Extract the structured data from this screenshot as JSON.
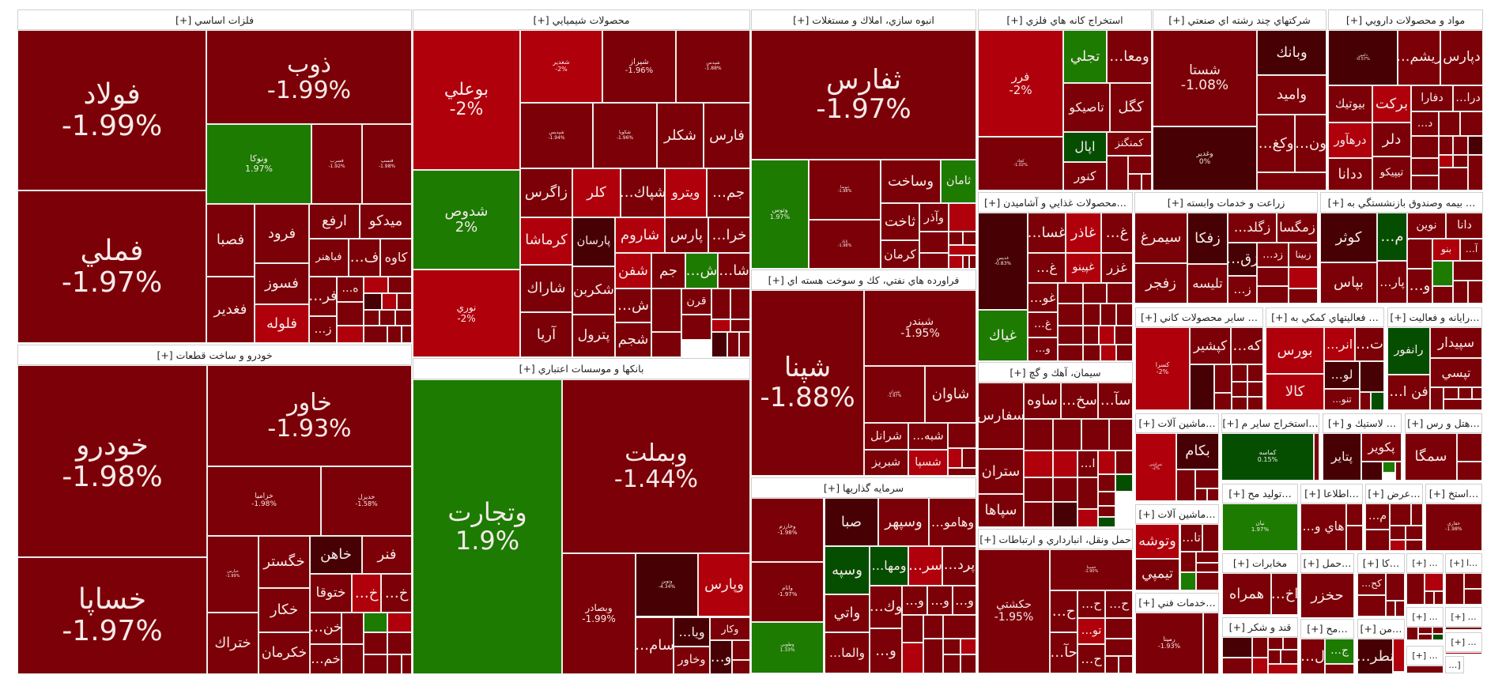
{
  "palette": {
    "d": "#7c0007",
    "r": "#b0000c",
    "k": "#470003",
    "g": "#1c7b00",
    "G": "#054e00"
  },
  "sectors": [
    {
      "title": "فلزات اساسي [+]",
      "tiles": [
        {
          "s": "فولاد",
          "c": "-1.99%",
          "k": "d"
        },
        {
          "s": "فملي",
          "c": "-1.97%",
          "k": "d"
        },
        {
          "s": "ذوب",
          "c": "-1.99%",
          "k": "d"
        },
        {
          "s": "ونوكا",
          "c": "1.97%",
          "k": "g"
        },
        {
          "s": "فسرب",
          "c": "-1.92%",
          "k": "d"
        },
        {
          "s": "فنسپ",
          "c": "-1.98%",
          "k": "d"
        },
        {
          "s": "فصبا",
          "k": "d"
        },
        {
          "s": "فغدير",
          "k": "d"
        },
        {
          "s": "فرود",
          "k": "d"
        },
        {
          "s": "فسوز",
          "k": "d"
        },
        {
          "s": "فلوله",
          "k": "r"
        },
        {
          "s": "ارفع",
          "k": "d"
        },
        {
          "s": "ميدكو",
          "k": "d"
        },
        {
          "s": "فباهنر",
          "k": "d"
        },
        {
          "s": "ف…",
          "k": "d"
        },
        {
          "s": "كاوه",
          "k": "d"
        },
        {
          "s": "فر…",
          "k": "d"
        },
        {
          "s": "ز…",
          "k": "d"
        },
        {
          "s": "ه…",
          "k": "d"
        }
      ],
      "fill": "rdkrddrdddddd"
    },
    {
      "title": "خودرو و ساخت قطعات [+]",
      "tiles": [
        {
          "s": "خودرو",
          "c": "-1.98%",
          "k": "d"
        },
        {
          "s": "خساپا",
          "c": "-1.97%",
          "k": "d"
        },
        {
          "s": "خاور",
          "c": "-1.93%",
          "k": "d"
        },
        {
          "s": "خزاميا",
          "c": "-1.98%",
          "k": "d"
        },
        {
          "s": "خديزل",
          "c": "-1.58%",
          "k": "d"
        },
        {
          "s": "خپارس",
          "c": "-1.99%",
          "k": "d"
        },
        {
          "s": "ختراك",
          "k": "d"
        },
        {
          "s": "خگستر",
          "k": "d"
        },
        {
          "s": "خكار",
          "k": "d"
        },
        {
          "s": "خكرمان",
          "k": "d"
        },
        {
          "s": "خاهن",
          "k": "k"
        },
        {
          "s": "فنر",
          "k": "d"
        },
        {
          "s": "ختوقا",
          "k": "d"
        },
        {
          "s": "خ…",
          "k": "r"
        },
        {
          "s": "خ…",
          "k": "d"
        },
        {
          "s": "خن…",
          "k": "d"
        },
        {
          "s": "خم…",
          "k": "d"
        }
      ],
      "fill": "dgrdddddd"
    },
    {
      "title": "محصولات شيميايي [+]",
      "tiles": [
        {
          "s": "بوعلي",
          "c": "-2%",
          "k": "r"
        },
        {
          "s": "شدوص",
          "c": "2%",
          "k": "g"
        },
        {
          "s": "نوري",
          "c": "-2%",
          "k": "r"
        },
        {
          "s": "شغدير",
          "c": "-2%",
          "k": "r"
        },
        {
          "s": "شيراز",
          "c": "-1.96%",
          "k": "d"
        },
        {
          "s": "شيدس",
          "c": "-1.88%",
          "k": "d"
        },
        {
          "s": "شپديس",
          "c": "-1.94%",
          "k": "d"
        },
        {
          "s": "شكويا",
          "c": "-1.96%",
          "k": "d"
        },
        {
          "s": "شكلر",
          "k": "d"
        },
        {
          "s": "فارس",
          "k": "d"
        },
        {
          "s": "زاگرس",
          "k": "d"
        },
        {
          "s": "كلر",
          "k": "r"
        },
        {
          "s": "شپاك…",
          "k": "d"
        },
        {
          "s": "ويترو",
          "k": "r"
        },
        {
          "s": "جم…",
          "k": "d"
        },
        {
          "s": "كرماشا",
          "k": "r"
        },
        {
          "s": "پارسان",
          "k": "k"
        },
        {
          "s": "شاروم",
          "k": "r"
        },
        {
          "s": "پارس",
          "k": "d"
        },
        {
          "s": "خرا…",
          "k": "d"
        },
        {
          "s": "شفن",
          "k": "r"
        },
        {
          "s": "جم",
          "k": "d"
        },
        {
          "s": "ش…",
          "k": "g"
        },
        {
          "s": "شا…",
          "k": "d"
        },
        {
          "s": "شاراك",
          "k": "d"
        },
        {
          "s": "آريا",
          "k": "d"
        },
        {
          "s": "شكربن",
          "k": "d"
        },
        {
          "s": "پترول",
          "k": "d"
        },
        {
          "s": "ش…",
          "k": "d"
        },
        {
          "s": "شجم",
          "k": "d"
        },
        {
          "s": "قرن",
          "k": "d"
        }
      ],
      "fill": "dddddrdkdd"
    },
    {
      "title": "بانكها و موسسات اعتباري [+]",
      "tiles": [
        {
          "s": "وتجارت",
          "c": "1.9%",
          "k": "g"
        },
        {
          "s": "وبملت",
          "c": "-1.44%",
          "k": "d"
        },
        {
          "s": "وبصادر",
          "c": "-1.99%",
          "k": "d"
        },
        {
          "s": "ونوين",
          "c": "-4.34%",
          "k": "k"
        },
        {
          "s": "وپارس",
          "k": "r"
        },
        {
          "s": "سام…",
          "k": "d"
        },
        {
          "s": "ويا…",
          "k": "k"
        },
        {
          "s": "وخاور",
          "k": "d"
        },
        {
          "s": "وكار",
          "k": "d"
        },
        {
          "s": "و…",
          "k": "k"
        }
      ],
      "fill": "dd"
    },
    {
      "title": "انبوه سازي، املاك و مستغلات [+]",
      "tiles": [
        {
          "s": "ثفارس",
          "c": "-1.97%",
          "k": "d"
        },
        {
          "s": "وتوس",
          "c": "1.97%",
          "k": "g"
        },
        {
          "s": "ثنوسا",
          "c": "-1.98%",
          "k": "d"
        },
        {
          "s": "ثاباد",
          "c": "-1.98%",
          "k": "d"
        },
        {
          "s": "وساخت",
          "k": "d"
        },
        {
          "s": "ثامان",
          "k": "g"
        },
        {
          "s": "ثاخت",
          "k": "d"
        },
        {
          "s": "وآذر",
          "k": "d"
        },
        {
          "s": "كرمان",
          "k": "d"
        }
      ],
      "fill": "rddddrrdd"
    },
    {
      "title": "فراورده هاي نفتي، كك و سوخت هسته اي [+]",
      "tiles": [
        {
          "s": "شپنا",
          "c": "-1.88%",
          "k": "d"
        },
        {
          "s": "شبندر",
          "c": "-1.95%",
          "k": "d"
        },
        {
          "s": "شتران",
          "c": "-1.97%",
          "k": "d"
        },
        {
          "s": "شاوان",
          "k": "d"
        },
        {
          "s": "شرانل",
          "k": "d"
        },
        {
          "s": "شبه…",
          "k": "d"
        },
        {
          "s": "شبريز",
          "k": "d"
        },
        {
          "s": "شسپا",
          "k": "r"
        }
      ],
      "fill": "drdd"
    },
    {
      "title": "سرمايه گذاريها [+]",
      "tiles": [
        {
          "s": "وخارزم",
          "c": "-1.98%",
          "k": "d"
        },
        {
          "s": "واثام",
          "c": "-1.97%",
          "k": "d"
        },
        {
          "s": "وطوبي",
          "c": "1.33%",
          "k": "g"
        },
        {
          "s": "صبا",
          "k": "k"
        },
        {
          "s": "وسپهر",
          "k": "d"
        },
        {
          "s": "وهامو…",
          "k": "d"
        },
        {
          "s": "وسپه",
          "k": "G"
        },
        {
          "s": "ومها…",
          "k": "G"
        },
        {
          "s": "سر…",
          "k": "r"
        },
        {
          "s": "پرد…",
          "k": "d"
        },
        {
          "s": "واتي",
          "k": "d"
        },
        {
          "s": "والما…",
          "k": "d"
        },
        {
          "s": "وك…",
          "k": "d"
        },
        {
          "s": "و…",
          "k": "d"
        },
        {
          "s": "و…",
          "k": "d"
        },
        {
          "s": "و…",
          "k": "d"
        },
        {
          "s": "و…",
          "k": "d"
        }
      ],
      "fill": "dddrddrdd"
    },
    {
      "title": "استخراج كانه هاي فلزي [+]",
      "tiles": [
        {
          "s": "فرر",
          "c": "-2%",
          "k": "r"
        },
        {
          "s": "كچاد",
          "c": "-1.02%",
          "k": "d"
        },
        {
          "s": "تجلي",
          "k": "g"
        },
        {
          "s": "ومعا…",
          "k": "d"
        },
        {
          "s": "تاصيكو",
          "k": "d"
        },
        {
          "s": "كگل",
          "k": "d"
        },
        {
          "s": "اپال",
          "k": "G"
        },
        {
          "s": "كمنگنز",
          "k": "d"
        },
        {
          "s": "كنور",
          "k": "d"
        }
      ],
      "fill": "dddd"
    },
    {
      "title": "…محصولات غذايي و آشاميدن [+]",
      "tiles": [
        {
          "s": "غديس",
          "c": "-0.83%",
          "k": "k"
        },
        {
          "s": "غياك",
          "k": "g"
        },
        {
          "s": "غسا…",
          "k": "d"
        },
        {
          "s": "غاذر",
          "k": "r"
        },
        {
          "s": "غ…",
          "k": "d"
        },
        {
          "s": "غ…",
          "k": "d"
        },
        {
          "s": "غپينو",
          "k": "r"
        },
        {
          "s": "غزر",
          "k": "d"
        },
        {
          "s": "غو…",
          "k": "d"
        },
        {
          "s": "غ…",
          "k": "d"
        },
        {
          "s": "و…",
          "k": "d"
        }
      ],
      "fill": "dddddddddrdddrd"
    },
    {
      "title": "سيمان، آهك و گچ [+]",
      "tiles": [
        {
          "s": "سفارس",
          "k": "d"
        },
        {
          "s": "ستران",
          "k": "d"
        },
        {
          "s": "سپاها",
          "k": "d"
        },
        {
          "s": "ساوه",
          "k": "d"
        },
        {
          "s": "سخ…",
          "k": "d"
        },
        {
          "s": "سآ…",
          "k": "d"
        },
        {
          "s": "ا…",
          "k": "d"
        }
      ],
      "fill": "ddddrrrdddddGddkrdG"
    },
    {
      "title": "حمل ونقل، انبارداري و ارتباطات [+]",
      "tiles": [
        {
          "s": "حكشتي",
          "c": "-1.95%",
          "k": "d"
        },
        {
          "s": "حسينا",
          "c": "-1.90%",
          "k": "d"
        },
        {
          "s": "ح…",
          "k": "d"
        },
        {
          "s": "ح…",
          "k": "d"
        },
        {
          "s": "ح…",
          "k": "d"
        },
        {
          "s": "حآ…",
          "k": "d"
        },
        {
          "s": "تو…",
          "k": "r"
        },
        {
          "s": "ح…",
          "k": "d"
        }
      ],
      "fill": "dddd"
    },
    {
      "title": "شركتهاي چند رشته اي صنعتي [+]",
      "tiles": [
        {
          "s": "شستا",
          "c": "-1.08%",
          "k": "d"
        },
        {
          "s": "وغدير",
          "c": "0%",
          "k": "k"
        },
        {
          "s": "وبانك",
          "k": "k"
        },
        {
          "s": "واميد",
          "k": "d"
        },
        {
          "s": "وكغ…",
          "k": "d"
        },
        {
          "s": "ون…",
          "k": "d"
        }
      ],
      "fill": "d"
    },
    {
      "title": "مواد و محصولات دارويي [+]",
      "tiles": [
        {
          "s": "دامين",
          "c": "-0.57%",
          "k": "k"
        },
        {
          "s": "ريشم…",
          "k": "d"
        },
        {
          "s": "دپارس",
          "k": "d"
        },
        {
          "s": "بيوتيك",
          "k": "d"
        },
        {
          "s": "بركت",
          "k": "r"
        },
        {
          "s": "دفارا",
          "k": "d"
        },
        {
          "s": "درا…",
          "k": "d"
        },
        {
          "s": "درهآور",
          "k": "r"
        },
        {
          "s": "دلر",
          "k": "d"
        },
        {
          "s": "د…",
          "k": "d"
        },
        {
          "s": "ددانا",
          "k": "d"
        },
        {
          "s": "تيپيكو",
          "k": "d"
        }
      ],
      "fill": "dddddkddrddd"
    },
    {
      "title": "زراعت و خدمات وابسته [+]",
      "tiles": [
        {
          "s": "سيمرغ",
          "k": "d"
        },
        {
          "s": "زفجر",
          "k": "d"
        },
        {
          "s": "زفكا",
          "k": "k"
        },
        {
          "s": "تليسه",
          "k": "d"
        },
        {
          "s": "زگلد…",
          "k": "d"
        },
        {
          "s": "زمگسا",
          "k": "d"
        },
        {
          "s": "زق…",
          "k": "k"
        },
        {
          "s": "زد…",
          "k": "d"
        },
        {
          "s": "زبينا",
          "k": "d"
        },
        {
          "s": "ز…",
          "k": "d"
        }
      ],
      "fill": "drdd"
    },
    {
      "title": "… بيمه وصندوق بازنشستگي به [+]",
      "tiles": [
        {
          "s": "كوثر",
          "k": "k"
        },
        {
          "s": "بپاس",
          "k": "d"
        },
        {
          "s": "م…",
          "k": "G"
        },
        {
          "s": "پار…",
          "k": "d"
        },
        {
          "s": "نوين",
          "k": "d"
        },
        {
          "s": "دانا",
          "k": "d"
        },
        {
          "s": "بنو",
          "k": "r"
        },
        {
          "s": "آ…",
          "k": "d"
        },
        {
          "s": "و…",
          "k": "d"
        }
      ],
      "fill": "dgddddd"
    },
    {
      "title": "… ساير محصولات كاني [+]",
      "tiles": [
        {
          "s": "كسرا",
          "c": "-2%",
          "k": "r"
        },
        {
          "s": "كپشير",
          "k": "d"
        },
        {
          "s": "كه…",
          "k": "d"
        }
      ],
      "fill": "kdddddddd"
    },
    {
      "title": "… فعاليتهاي كمكي به [+]",
      "tiles": [
        {
          "s": "بورس",
          "k": "r"
        },
        {
          "s": "كالا",
          "k": "r"
        },
        {
          "s": "انر…",
          "k": "r"
        },
        {
          "s": "ت…",
          "k": "d"
        },
        {
          "s": "لو…",
          "k": "k"
        },
        {
          "s": "تنو…",
          "k": "d"
        }
      ],
      "fill": "kdG"
    },
    {
      "title": "…رايانه و فعاليت [+]",
      "tiles": [
        {
          "s": "رانفور",
          "k": "G"
        },
        {
          "s": "سپيدار",
          "k": "d"
        },
        {
          "s": "تپسي",
          "k": "d"
        },
        {
          "s": "فن ا…",
          "k": "d"
        }
      ],
      "fill": "ddddd"
    },
    {
      "title": "…ماشين آلات [+]",
      "tiles": [
        {
          "s": "تمراشي",
          "c": "-2%",
          "k": "r"
        },
        {
          "s": "بكام",
          "k": "k"
        }
      ],
      "fill": "dddd"
    },
    {
      "title": "…استخراج ساير م [+]",
      "tiles": [
        {
          "s": "كماسه",
          "c": "0.15%",
          "k": "G"
        }
      ],
      "fill": "d"
    },
    {
      "title": "… لاستيك و [+]",
      "tiles": [
        {
          "s": "پتاير",
          "k": "k"
        },
        {
          "s": "پكوير",
          "k": "d"
        }
      ],
      "fill": "kgd"
    },
    {
      "title": "…هتل و رس [+]",
      "tiles": [
        {
          "s": "سمگا",
          "k": "d"
        }
      ],
      "fill": "dd"
    },
    {
      "title": "…ماشين آلات [+]",
      "tiles": [
        {
          "s": "وتوشه",
          "k": "r"
        },
        {
          "s": "تيمپي",
          "k": "d"
        },
        {
          "s": "تا…",
          "k": "d"
        }
      ],
      "fill": "ddddgd"
    },
    {
      "title": "…خدمات فني [+]",
      "tiles": [
        {
          "s": "رمپنا",
          "c": "-1.93%",
          "k": "d"
        }
      ],
      "fill": "d"
    },
    {
      "title": "…توليد مح [+]",
      "tiles": [
        {
          "s": "نيان",
          "c": "1.97%",
          "k": "g"
        }
      ],
      "fill": ""
    },
    {
      "title": "…اطلاعا [+]",
      "tiles": [
        {
          "s": "هاي و…",
          "k": "d"
        }
      ],
      "fill": "dd"
    },
    {
      "title": "…عرض [+]",
      "tiles": [
        {
          "s": "م…",
          "k": "d"
        }
      ],
      "fill": "dddddrd"
    },
    {
      "title": "…استخ [+]",
      "tiles": [
        {
          "s": "حفاري",
          "c": "-1.98%",
          "k": "d"
        }
      ],
      "fill": ""
    },
    {
      "title": "مخابرات [+]",
      "tiles": [
        {
          "s": "همراه",
          "k": "d"
        },
        {
          "s": "اخ…",
          "k": "d"
        }
      ],
      "fill": ""
    },
    {
      "title": "قند و شكر [+]",
      "tiles": [],
      "fill": "kddddrddr"
    },
    {
      "title": "…حمل [+]",
      "tiles": [
        {
          "s": "حخزر",
          "k": "d"
        }
      ],
      "fill": ""
    },
    {
      "title": "…مح [+]",
      "tiles": [
        {
          "s": "ل…",
          "k": "d"
        },
        {
          "s": "ج…",
          "k": "g"
        }
      ],
      "fill": "d"
    },
    {
      "title": "…كا [+]",
      "tiles": [
        {
          "s": "كح…",
          "k": "d"
        }
      ],
      "fill": "dddd"
    },
    {
      "title": "…من [+]",
      "tiles": [
        {
          "s": "نطر…",
          "k": "k"
        }
      ],
      "fill": "r"
    },
    {
      "title": "… [+]",
      "tiles": [],
      "fill": "drdd"
    },
    {
      "title": "…ا [+]",
      "tiles": [],
      "fill": "ddd"
    },
    {
      "title": "… [+]",
      "tiles": [],
      "fill": "ddddG"
    },
    {
      "title": "… [+]",
      "tiles": [],
      "fill": "d"
    },
    {
      "title": "… [+]",
      "tiles": [],
      "fill": "r"
    },
    {
      "title": "… [+]",
      "tiles": [],
      "fill": "d"
    },
    {
      "title": "[…",
      "tiles": [],
      "fill": ""
    }
  ]
}
